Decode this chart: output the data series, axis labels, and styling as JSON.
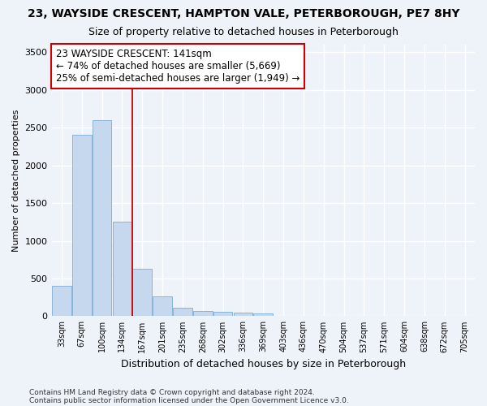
{
  "title": "23, WAYSIDE CRESCENT, HAMPTON VALE, PETERBOROUGH, PE7 8HY",
  "subtitle": "Size of property relative to detached houses in Peterborough",
  "xlabel": "Distribution of detached houses by size in Peterborough",
  "ylabel": "Number of detached properties",
  "categories": [
    "33sqm",
    "67sqm",
    "100sqm",
    "134sqm",
    "167sqm",
    "201sqm",
    "235sqm",
    "268sqm",
    "302sqm",
    "336sqm",
    "369sqm",
    "403sqm",
    "436sqm",
    "470sqm",
    "504sqm",
    "537sqm",
    "571sqm",
    "604sqm",
    "638sqm",
    "672sqm",
    "705sqm"
  ],
  "values": [
    400,
    2400,
    2600,
    1250,
    630,
    260,
    110,
    65,
    60,
    45,
    35,
    0,
    0,
    0,
    0,
    0,
    0,
    0,
    0,
    0,
    0
  ],
  "bar_color": "#c5d8ee",
  "bar_edge_color": "#7aadd4",
  "vline_x_idx": 3.5,
  "vline_color": "#cc0000",
  "annotation_text": "23 WAYSIDE CRESCENT: 141sqm\n← 74% of detached houses are smaller (5,669)\n25% of semi-detached houses are larger (1,949) →",
  "annotation_box_color": "#ffffff",
  "annotation_box_edge": "#cc0000",
  "ylim": [
    0,
    3600
  ],
  "yticks": [
    0,
    500,
    1000,
    1500,
    2000,
    2500,
    3000,
    3500
  ],
  "footer1": "Contains HM Land Registry data © Crown copyright and database right 2024.",
  "footer2": "Contains public sector information licensed under the Open Government Licence v3.0.",
  "bg_color": "#eef2f9",
  "grid_color": "#ffffff",
  "title_fontsize": 10,
  "subtitle_fontsize": 9,
  "annot_fontsize": 8.5
}
